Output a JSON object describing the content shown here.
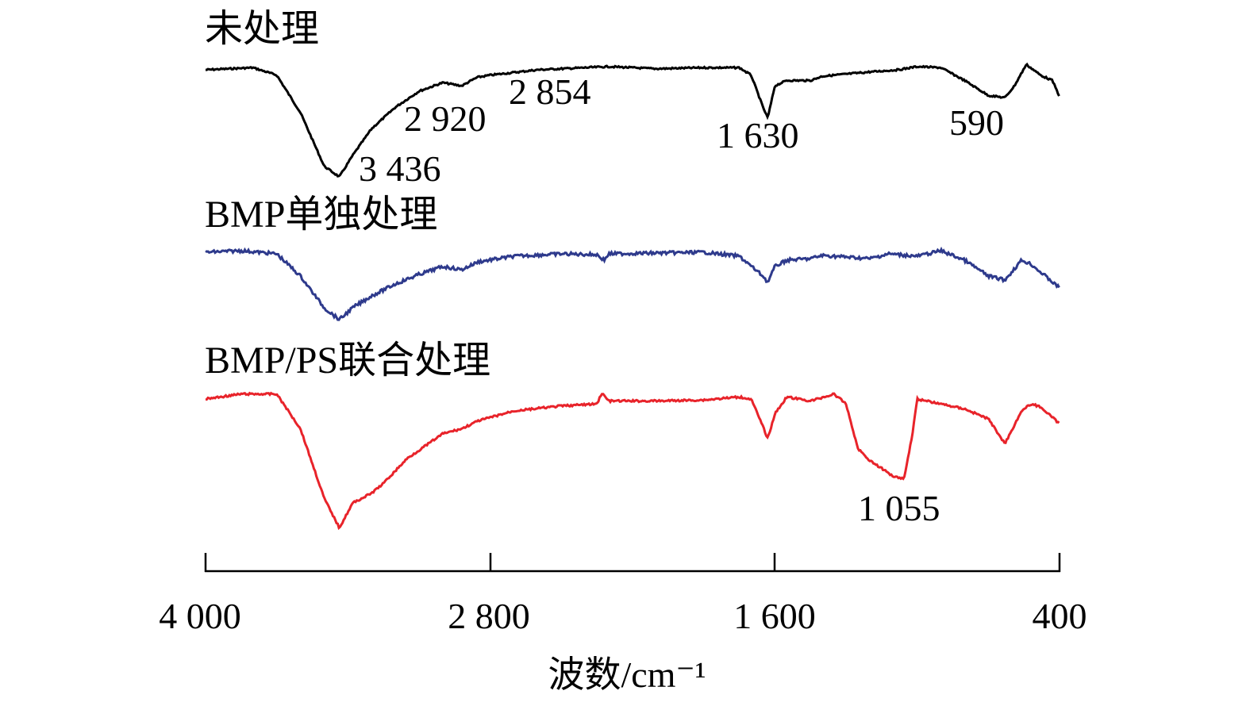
{
  "chart_data": {
    "type": "line",
    "title": "",
    "xlabel": "波数/cm⁻¹",
    "ylabel": "",
    "x_reversed": true,
    "xlim": [
      4000,
      400
    ],
    "xticks": [
      {
        "value": 4000,
        "label": "4 000"
      },
      {
        "value": 2800,
        "label": "2 800"
      },
      {
        "value": 1600,
        "label": "1 600"
      },
      {
        "value": 400,
        "label": "400"
      }
    ],
    "y_axis_shown": false,
    "grid": false,
    "series": [
      {
        "name": "未处理",
        "color": "#000000",
        "noise": 0.25,
        "points": [
          [
            4000,
            0.0
          ],
          [
            3800,
            0.02
          ],
          [
            3700,
            -0.05
          ],
          [
            3600,
            -0.4
          ],
          [
            3500,
            -0.9
          ],
          [
            3436,
            -1.0
          ],
          [
            3380,
            -0.8
          ],
          [
            3300,
            -0.55
          ],
          [
            3200,
            -0.35
          ],
          [
            3100,
            -0.2
          ],
          [
            3000,
            -0.12
          ],
          [
            2920,
            -0.15
          ],
          [
            2880,
            -0.1
          ],
          [
            2854,
            -0.07
          ],
          [
            2800,
            -0.05
          ],
          [
            2600,
            0.0
          ],
          [
            2400,
            0.02
          ],
          [
            2300,
            0.03
          ],
          [
            2100,
            0.01
          ],
          [
            1900,
            0.02
          ],
          [
            1750,
            0.02
          ],
          [
            1700,
            -0.05
          ],
          [
            1650,
            -0.35
          ],
          [
            1630,
            -0.45
          ],
          [
            1600,
            -0.15
          ],
          [
            1550,
            -0.1
          ],
          [
            1450,
            -0.1
          ],
          [
            1400,
            -0.06
          ],
          [
            1200,
            -0.02
          ],
          [
            1080,
            0.0
          ],
          [
            1000,
            0.03
          ],
          [
            900,
            0.02
          ],
          [
            800,
            -0.1
          ],
          [
            700,
            -0.24
          ],
          [
            630,
            -0.26
          ],
          [
            590,
            -0.15
          ],
          [
            540,
            0.05
          ],
          [
            480,
            -0.05
          ],
          [
            430,
            -0.1
          ],
          [
            400,
            -0.25
          ]
        ],
        "peak_labels": [
          {
            "text": "3 436",
            "x": 3436
          },
          {
            "text": "2 920",
            "x": 2920
          },
          {
            "text": "2 854",
            "x": 2854
          },
          {
            "text": "1 630",
            "x": 1630
          },
          {
            "text": "590",
            "x": 590
          }
        ]
      },
      {
        "name": "BMP单独处理",
        "color": "#2e3a8c",
        "noise": 0.5,
        "points": [
          [
            4000,
            0.0
          ],
          [
            3850,
            0.02
          ],
          [
            3700,
            -0.02
          ],
          [
            3600,
            -0.3
          ],
          [
            3500,
            -0.7
          ],
          [
            3436,
            -0.85
          ],
          [
            3380,
            -0.7
          ],
          [
            3300,
            -0.55
          ],
          [
            3200,
            -0.4
          ],
          [
            3100,
            -0.28
          ],
          [
            3000,
            -0.18
          ],
          [
            2920,
            -0.22
          ],
          [
            2850,
            -0.12
          ],
          [
            2700,
            -0.05
          ],
          [
            2500,
            -0.02
          ],
          [
            2350,
            -0.03
          ],
          [
            2320,
            -0.1
          ],
          [
            2300,
            -0.02
          ],
          [
            2100,
            -0.01
          ],
          [
            1900,
            0.0
          ],
          [
            1750,
            -0.05
          ],
          [
            1650,
            -0.3
          ],
          [
            1630,
            -0.38
          ],
          [
            1600,
            -0.18
          ],
          [
            1550,
            -0.1
          ],
          [
            1450,
            -0.08
          ],
          [
            1400,
            -0.04
          ],
          [
            1300,
            -0.06
          ],
          [
            1200,
            -0.08
          ],
          [
            1120,
            -0.02
          ],
          [
            1000,
            -0.05
          ],
          [
            900,
            0.02
          ],
          [
            800,
            -0.1
          ],
          [
            700,
            -0.3
          ],
          [
            630,
            -0.35
          ],
          [
            560,
            -0.1
          ],
          [
            520,
            -0.15
          ],
          [
            480,
            -0.25
          ],
          [
            400,
            -0.45
          ]
        ]
      },
      {
        "name": "BMP/PS联合处理",
        "color": "#e8232a",
        "noise": 0.3,
        "points": [
          [
            4000,
            0.0
          ],
          [
            3850,
            0.05
          ],
          [
            3700,
            0.05
          ],
          [
            3600,
            -0.3
          ],
          [
            3500,
            -1.0
          ],
          [
            3436,
            -1.3
          ],
          [
            3380,
            -1.05
          ],
          [
            3300,
            -0.95
          ],
          [
            3250,
            -0.85
          ],
          [
            3150,
            -0.6
          ],
          [
            3000,
            -0.35
          ],
          [
            2920,
            -0.3
          ],
          [
            2850,
            -0.22
          ],
          [
            2700,
            -0.12
          ],
          [
            2500,
            -0.07
          ],
          [
            2350,
            -0.05
          ],
          [
            2330,
            0.06
          ],
          [
            2300,
            -0.02
          ],
          [
            2100,
            -0.02
          ],
          [
            1900,
            -0.01
          ],
          [
            1750,
            0.02
          ],
          [
            1700,
            0.0
          ],
          [
            1650,
            -0.28
          ],
          [
            1630,
            -0.4
          ],
          [
            1600,
            -0.15
          ],
          [
            1550,
            0.02
          ],
          [
            1450,
            -0.02
          ],
          [
            1350,
            0.05
          ],
          [
            1300,
            -0.05
          ],
          [
            1250,
            -0.5
          ],
          [
            1200,
            -0.62
          ],
          [
            1150,
            -0.7
          ],
          [
            1100,
            -0.78
          ],
          [
            1055,
            -0.8
          ],
          [
            1020,
            -0.35
          ],
          [
            1000,
            0.0
          ],
          [
            900,
            -0.05
          ],
          [
            800,
            -0.1
          ],
          [
            700,
            -0.2
          ],
          [
            630,
            -0.45
          ],
          [
            560,
            -0.12
          ],
          [
            520,
            -0.05
          ],
          [
            480,
            -0.08
          ],
          [
            400,
            -0.25
          ]
        ],
        "peak_labels": [
          {
            "text": "1 055",
            "x": 1055
          }
        ]
      }
    ]
  }
}
